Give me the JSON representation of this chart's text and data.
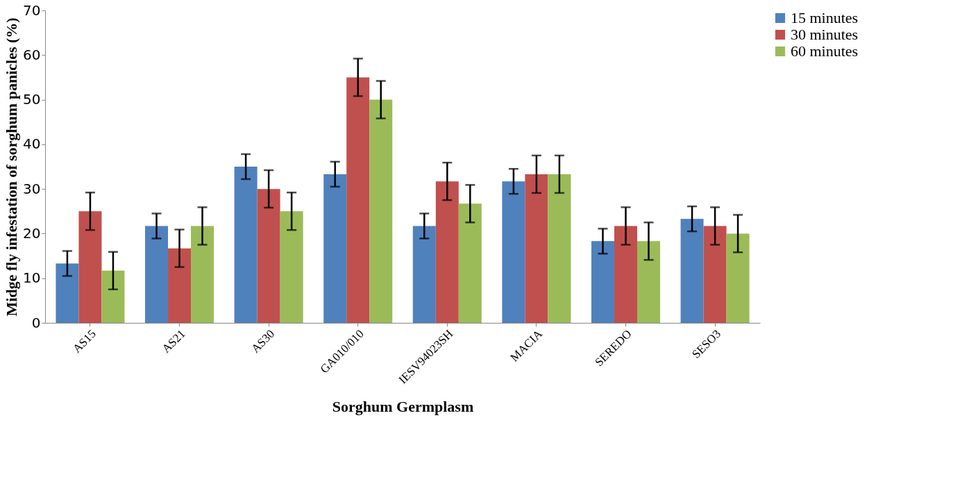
{
  "chart_data": {
    "type": "bar",
    "xlabel": "Sorghum Germplasm",
    "ylabel": "Midge fly infestation of sorghum panicles (%)",
    "categories": [
      "AS15",
      "AS21",
      "AS30",
      "GA010/010",
      "IESV94023SH",
      "MACIA",
      "SEREDO",
      "SESO3"
    ],
    "ylim": [
      0,
      70
    ],
    "yticks": [
      0,
      10,
      20,
      30,
      40,
      50,
      60,
      70
    ],
    "grid": false,
    "legend": "right",
    "series": [
      {
        "name": "15 minutes",
        "color": "#4f81bd",
        "values": [
          13.3,
          21.7,
          35,
          33.3,
          21.7,
          31.7,
          18.3,
          23.3
        ],
        "errors": [
          2.8,
          2.8,
          2.8,
          2.8,
          2.8,
          2.8,
          2.8,
          2.8
        ]
      },
      {
        "name": "30 minutes",
        "color": "#c0504d",
        "values": [
          25,
          16.7,
          30,
          55,
          31.7,
          33.3,
          21.7,
          21.7
        ],
        "errors": [
          4.2,
          4.2,
          4.2,
          4.2,
          4.2,
          4.2,
          4.2,
          4.2
        ]
      },
      {
        "name": "60 minutes",
        "color": "#9bbb59",
        "values": [
          11.7,
          21.7,
          25,
          50,
          26.7,
          33.3,
          18.3,
          20
        ],
        "errors": [
          4.2,
          4.2,
          4.2,
          4.2,
          4.2,
          4.2,
          4.2,
          4.2
        ]
      }
    ]
  }
}
